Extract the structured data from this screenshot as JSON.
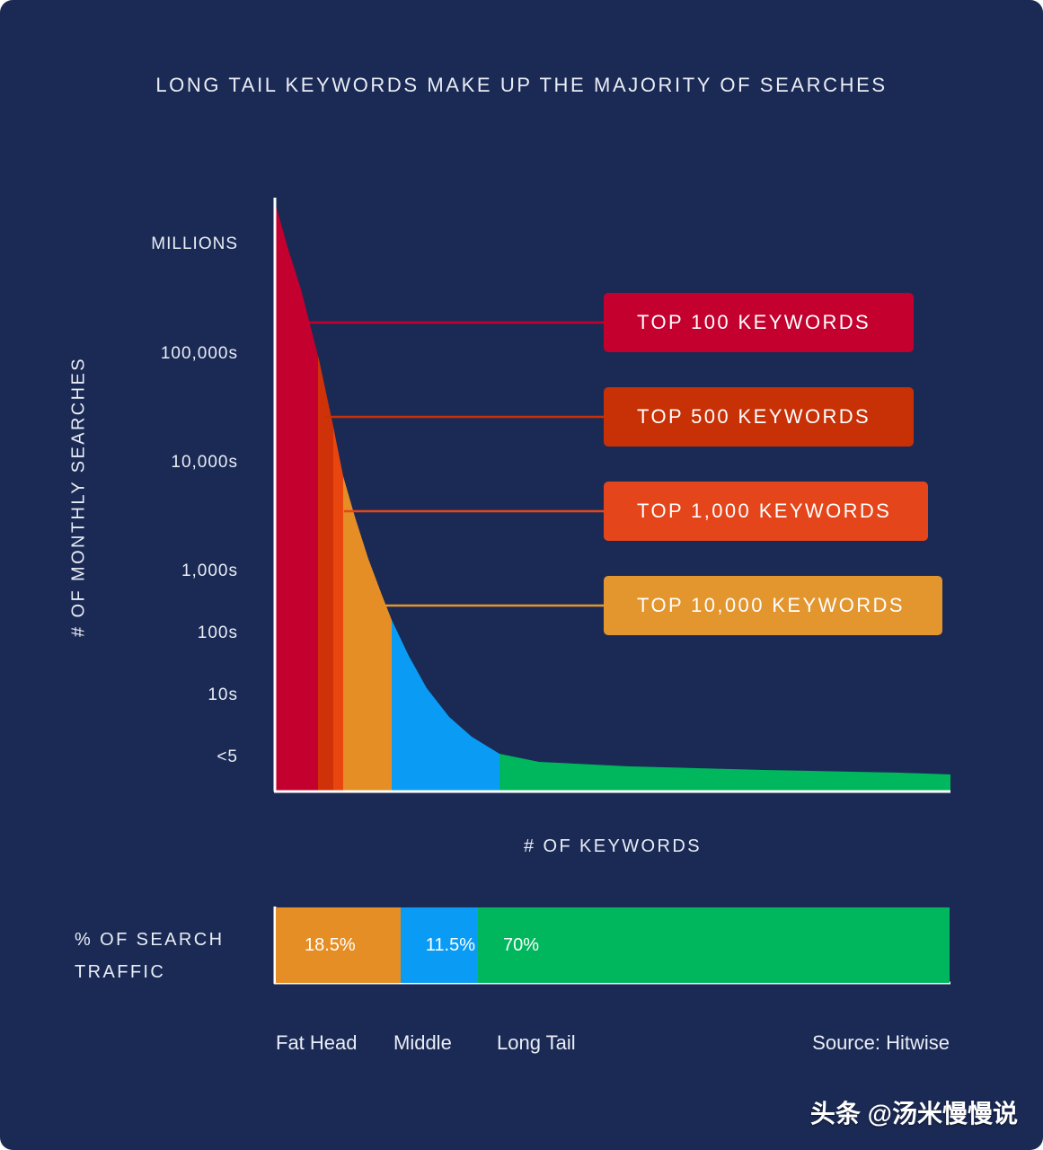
{
  "watermark": "头条 @汤米慢慢说",
  "chart_data": {
    "type": "area",
    "title": "LONG TAIL KEYWORDS MAKE UP THE MAJORITY OF SEARCHES",
    "ylabel": "# OF MONTHLY SEARCHES",
    "xlabel": "# OF KEYWORDS",
    "y_scale": "log",
    "y_ticks": [
      "MILLIONS",
      "100,000s",
      "10,000s",
      "1,000s",
      "100s",
      "10s",
      "<5"
    ],
    "curve_segments": [
      {
        "name": "Top 100",
        "color": "#c4002e"
      },
      {
        "name": "Top 500",
        "color": "#cf3208"
      },
      {
        "name": "Top 1,000",
        "color": "#e9450e"
      },
      {
        "name": "Top 10,000",
        "color": "#e58e25"
      },
      {
        "name": "Middle",
        "color": "#0a9cf5"
      },
      {
        "name": "Long Tail",
        "color": "#00b75d"
      }
    ],
    "callouts": [
      {
        "label": "TOP 100 KEYWORDS",
        "color": "#c4002e"
      },
      {
        "label": "TOP 500 KEYWORDS",
        "color": "#c83005"
      },
      {
        "label": "TOP 1,000 KEYWORDS",
        "color": "#e5451a"
      },
      {
        "label": "TOP 10,000 KEYWORDS",
        "color": "#e3952e"
      }
    ],
    "traffic": {
      "label": "% OF SEARCH TRAFFIC",
      "segments": [
        {
          "name": "Fat Head",
          "value": 18.5,
          "display": "18.5%",
          "color": "#e58e25"
        },
        {
          "name": "Middle",
          "value": 11.5,
          "display": "11.5%",
          "color": "#0a9cf5"
        },
        {
          "name": "Long Tail",
          "value": 70,
          "display": "70%",
          "color": "#00b75d"
        }
      ]
    },
    "source": "Source: Hitwise"
  }
}
